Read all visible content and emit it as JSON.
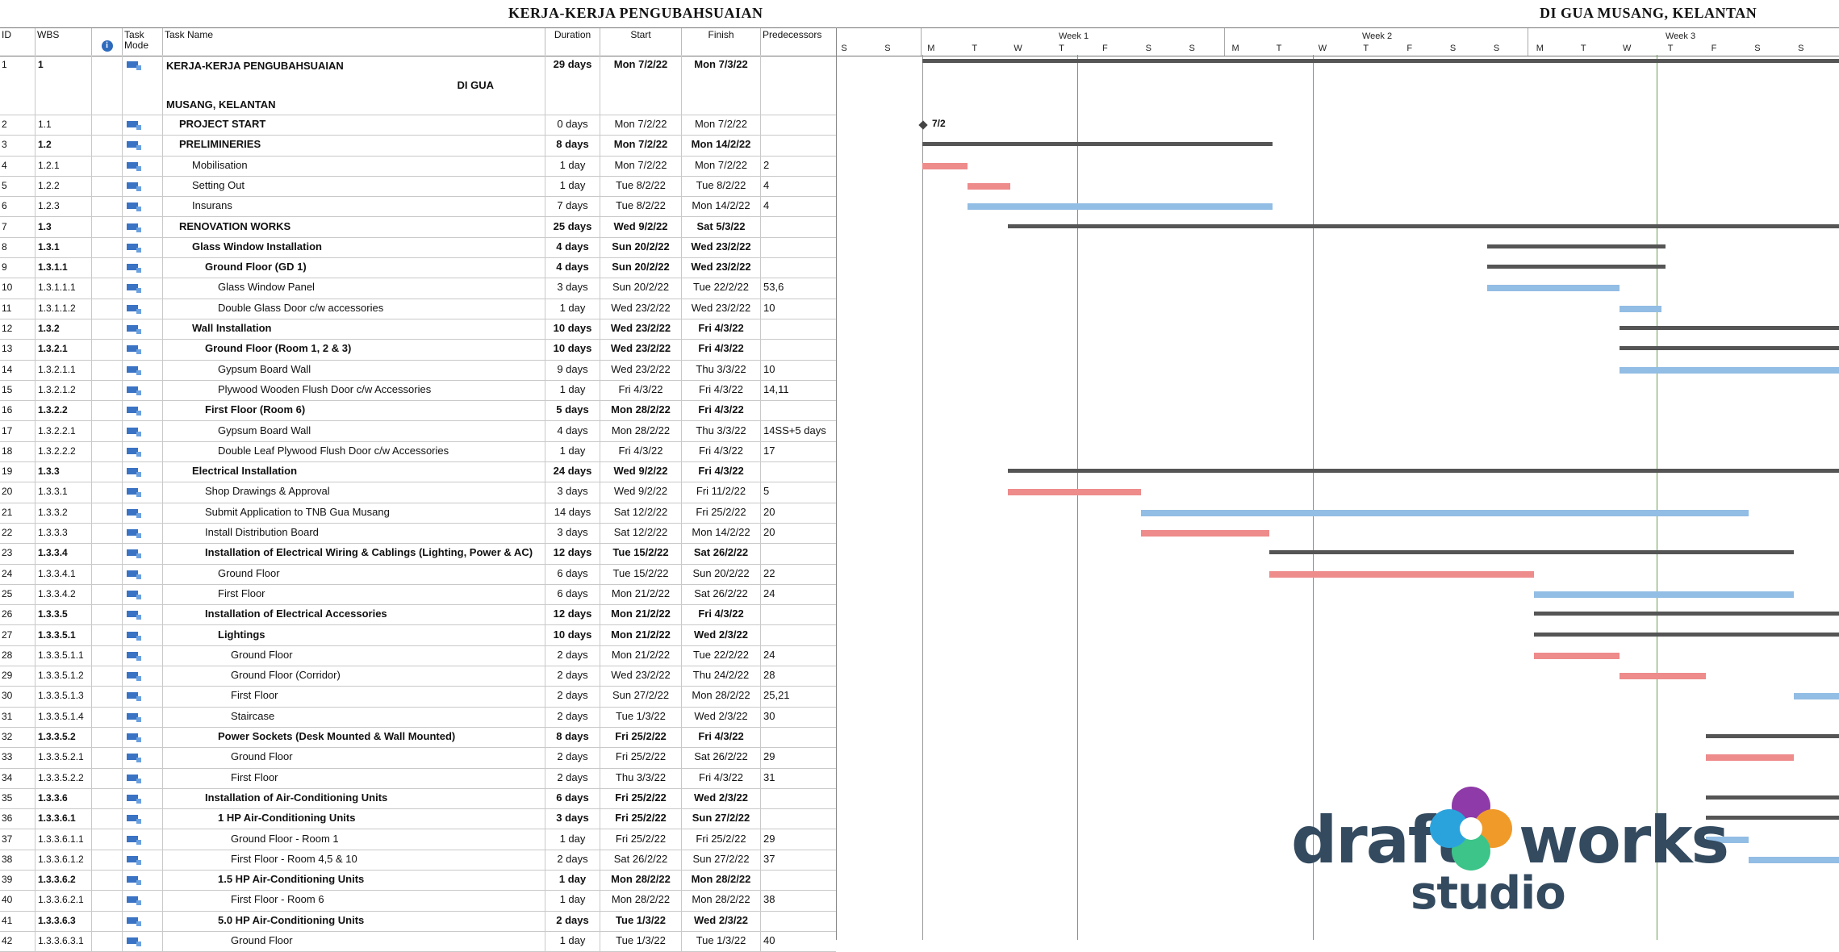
{
  "titles": {
    "left": "KERJA-KERJA PENGUBAHSUAIAN",
    "right": "DI GUA MUSANG, KELANTAN"
  },
  "columns": {
    "id": "ID",
    "wbs": "WBS",
    "info_icon": "info-icon",
    "mode": "Task Mode",
    "name": "Task Name",
    "duration": "Duration",
    "start": "Start",
    "finish": "Finish",
    "predecessors": "Predecessors"
  },
  "rows": [
    {
      "id": "1",
      "wbs": "1",
      "name": "KERJA-KERJA PENGUBAHSUAIAN",
      "name_line2": "DI GUA",
      "name_line3": "MUSANG, KELANTAN",
      "dur": "29 days",
      "start": "Mon 7/2/22",
      "fin": "Mon 7/3/22",
      "pred": "",
      "bold": true,
      "indent": 0
    },
    {
      "id": "2",
      "wbs": "1.1",
      "name": "PROJECT START",
      "dur": "0 days",
      "start": "Mon 7/2/22",
      "fin": "Mon 7/2/22",
      "pred": "",
      "bold": false,
      "namebold": true,
      "indent": 1
    },
    {
      "id": "3",
      "wbs": "1.2",
      "name": "PRELIMINERIES",
      "dur": "8 days",
      "start": "Mon 7/2/22",
      "fin": "Mon 14/2/22",
      "pred": "",
      "bold": true,
      "indent": 1
    },
    {
      "id": "4",
      "wbs": "1.2.1",
      "name": "Mobilisation",
      "dur": "1 day",
      "start": "Mon 7/2/22",
      "fin": "Mon 7/2/22",
      "pred": "2",
      "bold": false,
      "indent": 2
    },
    {
      "id": "5",
      "wbs": "1.2.2",
      "name": "Setting Out",
      "dur": "1 day",
      "start": "Tue 8/2/22",
      "fin": "Tue 8/2/22",
      "pred": "4",
      "bold": false,
      "indent": 2
    },
    {
      "id": "6",
      "wbs": "1.2.3",
      "name": "Insurans",
      "dur": "7 days",
      "start": "Tue 8/2/22",
      "fin": "Mon 14/2/22",
      "pred": "4",
      "bold": false,
      "indent": 2
    },
    {
      "id": "7",
      "wbs": "1.3",
      "name": "RENOVATION WORKS",
      "dur": "25 days",
      "start": "Wed 9/2/22",
      "fin": "Sat 5/3/22",
      "pred": "",
      "bold": true,
      "indent": 1
    },
    {
      "id": "8",
      "wbs": "1.3.1",
      "name": "Glass Window Installation",
      "dur": "4 days",
      "start": "Sun 20/2/22",
      "fin": "Wed 23/2/22",
      "pred": "",
      "bold": true,
      "indent": 2
    },
    {
      "id": "9",
      "wbs": "1.3.1.1",
      "name": "Ground Floor (GD 1)",
      "dur": "4 days",
      "start": "Sun 20/2/22",
      "fin": "Wed 23/2/22",
      "pred": "",
      "bold": true,
      "indent": 3
    },
    {
      "id": "10",
      "wbs": "1.3.1.1.1",
      "name": "Glass Window Panel",
      "dur": "3 days",
      "start": "Sun 20/2/22",
      "fin": "Tue 22/2/22",
      "pred": "53,6",
      "bold": false,
      "indent": 4
    },
    {
      "id": "11",
      "wbs": "1.3.1.1.2",
      "name": "Double Glass Door c/w accessories",
      "dur": "1 day",
      "start": "Wed 23/2/22",
      "fin": "Wed 23/2/22",
      "pred": "10",
      "bold": false,
      "indent": 4
    },
    {
      "id": "12",
      "wbs": "1.3.2",
      "name": "Wall Installation",
      "dur": "10 days",
      "start": "Wed 23/2/22",
      "fin": "Fri 4/3/22",
      "pred": "",
      "bold": true,
      "indent": 2
    },
    {
      "id": "13",
      "wbs": "1.3.2.1",
      "name": "Ground Floor (Room 1, 2 & 3)",
      "dur": "10 days",
      "start": "Wed 23/2/22",
      "fin": "Fri 4/3/22",
      "pred": "",
      "bold": true,
      "indent": 3
    },
    {
      "id": "14",
      "wbs": "1.3.2.1.1",
      "name": "Gypsum Board Wall",
      "dur": "9 days",
      "start": "Wed 23/2/22",
      "fin": "Thu 3/3/22",
      "pred": "10",
      "bold": false,
      "indent": 4
    },
    {
      "id": "15",
      "wbs": "1.3.2.1.2",
      "name": "Plywood Wooden Flush Door c/w Accessories",
      "dur": "1 day",
      "start": "Fri 4/3/22",
      "fin": "Fri 4/3/22",
      "pred": "14,11",
      "bold": false,
      "indent": 4
    },
    {
      "id": "16",
      "wbs": "1.3.2.2",
      "name": "First Floor (Room 6)",
      "dur": "5 days",
      "start": "Mon 28/2/22",
      "fin": "Fri 4/3/22",
      "pred": "",
      "bold": true,
      "indent": 3
    },
    {
      "id": "17",
      "wbs": "1.3.2.2.1",
      "name": "Gypsum Board Wall",
      "dur": "4 days",
      "start": "Mon 28/2/22",
      "fin": "Thu 3/3/22",
      "pred": "14SS+5 days",
      "bold": false,
      "indent": 4
    },
    {
      "id": "18",
      "wbs": "1.3.2.2.2",
      "name": "Double Leaf Plywood Flush Door c/w Accessories",
      "dur": "1 day",
      "start": "Fri 4/3/22",
      "fin": "Fri 4/3/22",
      "pred": "17",
      "bold": false,
      "indent": 4
    },
    {
      "id": "19",
      "wbs": "1.3.3",
      "name": "Electrical Installation",
      "dur": "24 days",
      "start": "Wed 9/2/22",
      "fin": "Fri 4/3/22",
      "pred": "",
      "bold": true,
      "indent": 2
    },
    {
      "id": "20",
      "wbs": "1.3.3.1",
      "name": "Shop Drawings & Approval",
      "dur": "3 days",
      "start": "Wed 9/2/22",
      "fin": "Fri 11/2/22",
      "pred": "5",
      "bold": false,
      "indent": 3
    },
    {
      "id": "21",
      "wbs": "1.3.3.2",
      "name": "Submit Application to TNB Gua Musang",
      "dur": "14 days",
      "start": "Sat 12/2/22",
      "fin": "Fri 25/2/22",
      "pred": "20",
      "bold": false,
      "indent": 3
    },
    {
      "id": "22",
      "wbs": "1.3.3.3",
      "name": "Install Distribution Board",
      "dur": "3 days",
      "start": "Sat 12/2/22",
      "fin": "Mon 14/2/22",
      "pred": "20",
      "bold": false,
      "indent": 3
    },
    {
      "id": "23",
      "wbs": "1.3.3.4",
      "name": "Installation of Electrical Wiring & Cablings (Lighting, Power & AC)",
      "dur": "12 days",
      "start": "Tue 15/2/22",
      "fin": "Sat 26/2/22",
      "pred": "",
      "bold": true,
      "indent": 3
    },
    {
      "id": "24",
      "wbs": "1.3.3.4.1",
      "name": "Ground Floor",
      "dur": "6 days",
      "start": "Tue 15/2/22",
      "fin": "Sun 20/2/22",
      "pred": "22",
      "bold": false,
      "indent": 4
    },
    {
      "id": "25",
      "wbs": "1.3.3.4.2",
      "name": "First Floor",
      "dur": "6 days",
      "start": "Mon 21/2/22",
      "fin": "Sat 26/2/22",
      "pred": "24",
      "bold": false,
      "indent": 4
    },
    {
      "id": "26",
      "wbs": "1.3.3.5",
      "name": "Installation of Electrical Accessories",
      "dur": "12 days",
      "start": "Mon 21/2/22",
      "fin": "Fri 4/3/22",
      "pred": "",
      "bold": true,
      "indent": 3
    },
    {
      "id": "27",
      "wbs": "1.3.3.5.1",
      "name": "Lightings",
      "dur": "10 days",
      "start": "Mon 21/2/22",
      "fin": "Wed 2/3/22",
      "pred": "",
      "bold": true,
      "indent": 4
    },
    {
      "id": "28",
      "wbs": "1.3.3.5.1.1",
      "name": "Ground Floor",
      "dur": "2 days",
      "start": "Mon 21/2/22",
      "fin": "Tue 22/2/22",
      "pred": "24",
      "bold": false,
      "indent": 5
    },
    {
      "id": "29",
      "wbs": "1.3.3.5.1.2",
      "name": "Ground Floor (Corridor)",
      "dur": "2 days",
      "start": "Wed 23/2/22",
      "fin": "Thu 24/2/22",
      "pred": "28",
      "bold": false,
      "indent": 5
    },
    {
      "id": "30",
      "wbs": "1.3.3.5.1.3",
      "name": "First Floor",
      "dur": "2 days",
      "start": "Sun 27/2/22",
      "fin": "Mon 28/2/22",
      "pred": "25,21",
      "bold": false,
      "indent": 5
    },
    {
      "id": "31",
      "wbs": "1.3.3.5.1.4",
      "name": "Staircase",
      "dur": "2 days",
      "start": "Tue 1/3/22",
      "fin": "Wed 2/3/22",
      "pred": "30",
      "bold": false,
      "indent": 5
    },
    {
      "id": "32",
      "wbs": "1.3.3.5.2",
      "name": "Power Sockets (Desk Mounted & Wall Mounted)",
      "dur": "8 days",
      "start": "Fri 25/2/22",
      "fin": "Fri 4/3/22",
      "pred": "",
      "bold": true,
      "indent": 4
    },
    {
      "id": "33",
      "wbs": "1.3.3.5.2.1",
      "name": "Ground Floor",
      "dur": "2 days",
      "start": "Fri 25/2/22",
      "fin": "Sat 26/2/22",
      "pred": "29",
      "bold": false,
      "indent": 5
    },
    {
      "id": "34",
      "wbs": "1.3.3.5.2.2",
      "name": "First Floor",
      "dur": "2 days",
      "start": "Thu 3/3/22",
      "fin": "Fri 4/3/22",
      "pred": "31",
      "bold": false,
      "indent": 5
    },
    {
      "id": "35",
      "wbs": "1.3.3.6",
      "name": "Installation of Air-Conditioning Units",
      "dur": "6 days",
      "start": "Fri 25/2/22",
      "fin": "Wed 2/3/22",
      "pred": "",
      "bold": true,
      "indent": 3
    },
    {
      "id": "36",
      "wbs": "1.3.3.6.1",
      "name": "1 HP Air-Conditioning Units",
      "dur": "3 days",
      "start": "Fri 25/2/22",
      "fin": "Sun 27/2/22",
      "pred": "",
      "bold": true,
      "indent": 4
    },
    {
      "id": "37",
      "wbs": "1.3.3.6.1.1",
      "name": "Ground Floor - Room 1",
      "dur": "1 day",
      "start": "Fri 25/2/22",
      "fin": "Fri 25/2/22",
      "pred": "29",
      "bold": false,
      "indent": 5
    },
    {
      "id": "38",
      "wbs": "1.3.3.6.1.2",
      "name": "First Floor - Room 4,5 & 10",
      "dur": "2 days",
      "start": "Sat 26/2/22",
      "fin": "Sun 27/2/22",
      "pred": "37",
      "bold": false,
      "indent": 5
    },
    {
      "id": "39",
      "wbs": "1.3.3.6.2",
      "name": "1.5 HP Air-Conditioning Units",
      "dur": "1 day",
      "start": "Mon 28/2/22",
      "fin": "Mon 28/2/22",
      "pred": "",
      "bold": true,
      "indent": 4
    },
    {
      "id": "40",
      "wbs": "1.3.3.6.2.1",
      "name": "First Floor - Room 6",
      "dur": "1 day",
      "start": "Mon 28/2/22",
      "fin": "Mon 28/2/22",
      "pred": "38",
      "bold": false,
      "indent": 5
    },
    {
      "id": "41",
      "wbs": "1.3.3.6.3",
      "name": "5.0 HP Air-Conditioning Units",
      "dur": "2 days",
      "start": "Tue 1/3/22",
      "fin": "Wed 2/3/22",
      "pred": "",
      "bold": true,
      "indent": 4
    },
    {
      "id": "42",
      "wbs": "1.3.3.6.3.1",
      "name": "Ground Floor",
      "dur": "1 day",
      "start": "Tue 1/3/22",
      "fin": "Tue 1/3/22",
      "pred": "40",
      "bold": false,
      "indent": 5
    }
  ],
  "timeline": {
    "weeks": [
      "Week 1",
      "Week 2",
      "Week 3"
    ],
    "days": [
      "S",
      "S",
      "M",
      "T",
      "W",
      "T",
      "F",
      "S",
      "S",
      "M",
      "T",
      "W",
      "T",
      "F",
      "S",
      "S",
      "M",
      "T",
      "W",
      "T",
      "F",
      "S",
      "S"
    ],
    "milestone_label": "7/2",
    "colors": {
      "critical": "#ee8b8b",
      "normal": "#92bde4",
      "summary": "#555555",
      "today": "#4caf50"
    }
  },
  "logo": {
    "word1": "draft",
    "word2": "works",
    "word3": "studio"
  }
}
